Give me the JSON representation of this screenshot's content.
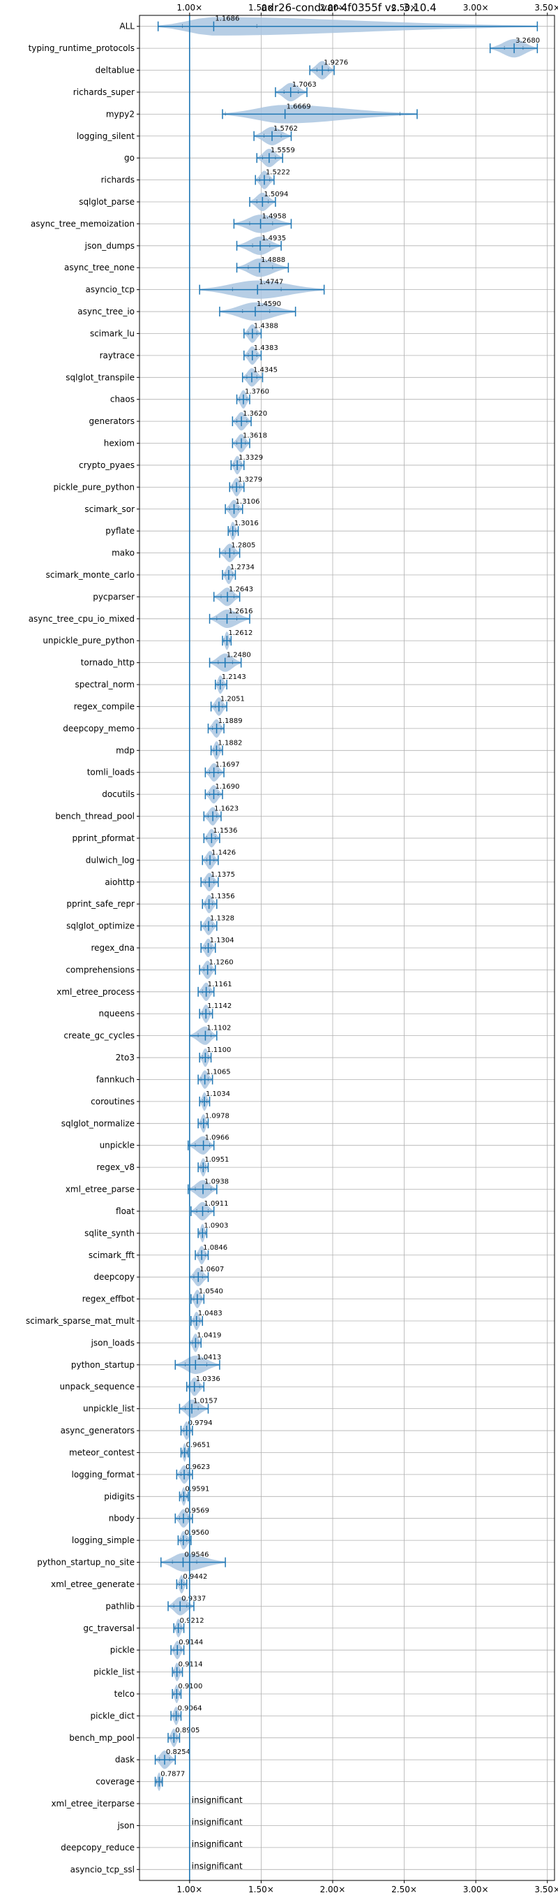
{
  "chart_data": {
    "type": "violin",
    "title": "adr26-condvar-4f0355f vs. 3.10.4",
    "x_ticks": [
      1.0,
      1.5,
      2.0,
      2.5,
      3.0,
      3.5
    ],
    "x_tick_labels": [
      "1.00×",
      "1.50×",
      "2.00×",
      "2.50×",
      "3.00×",
      "3.50×"
    ],
    "xlim": [
      0.65,
      3.55
    ],
    "reference_line": 1.0,
    "grid": true,
    "accent_color": "#1f77b4",
    "violin_color": "#aac6e1",
    "benchmarks": [
      {
        "name": "ALL",
        "label": "1.1686",
        "value": 1.1686,
        "min": 0.78,
        "max": 3.43,
        "p25": 0.95,
        "p75": 1.47
      },
      {
        "name": "typing_runtime_protocols",
        "label": "3.2680",
        "value": 3.268,
        "min": 3.1,
        "max": 3.43,
        "p25": 3.2,
        "p75": 3.33
      },
      {
        "name": "deltablue",
        "label": "1.9276",
        "value": 1.9276,
        "min": 1.84,
        "max": 2.01,
        "p25": 1.89,
        "p75": 1.97
      },
      {
        "name": "richards_super",
        "label": "1.7063",
        "value": 1.7063,
        "min": 1.6,
        "max": 1.82,
        "p25": 1.66,
        "p75": 1.76
      },
      {
        "name": "mypy2",
        "label": "1.6669",
        "value": 1.6669,
        "min": 1.23,
        "max": 2.59,
        "p25": 1.25,
        "p75": 2.47
      },
      {
        "name": "logging_silent",
        "label": "1.5762",
        "value": 1.5762,
        "min": 1.45,
        "max": 1.71,
        "p25": 1.52,
        "p75": 1.64
      },
      {
        "name": "go",
        "label": "1.5559",
        "value": 1.5559,
        "min": 1.47,
        "max": 1.65,
        "p25": 1.51,
        "p75": 1.6
      },
      {
        "name": "richards",
        "label": "1.5222",
        "value": 1.5222,
        "min": 1.46,
        "max": 1.59,
        "p25": 1.49,
        "p75": 1.56
      },
      {
        "name": "sqlglot_parse",
        "label": "1.5094",
        "value": 1.5094,
        "min": 1.42,
        "max": 1.6,
        "p25": 1.47,
        "p75": 1.55
      },
      {
        "name": "async_tree_memoization",
        "label": "1.4958",
        "value": 1.4958,
        "min": 1.31,
        "max": 1.71,
        "p25": 1.42,
        "p75": 1.58
      },
      {
        "name": "json_dumps",
        "label": "1.4935",
        "value": 1.4935,
        "min": 1.33,
        "max": 1.64,
        "p25": 1.44,
        "p75": 1.56
      },
      {
        "name": "async_tree_none",
        "label": "1.4888",
        "value": 1.4888,
        "min": 1.33,
        "max": 1.69,
        "p25": 1.41,
        "p75": 1.58
      },
      {
        "name": "asyncio_tcp",
        "label": "1.4747",
        "value": 1.4747,
        "min": 1.07,
        "max": 1.94,
        "p25": 1.3,
        "p75": 1.64
      },
      {
        "name": "async_tree_io",
        "label": "1.4590",
        "value": 1.459,
        "min": 1.21,
        "max": 1.74,
        "p25": 1.37,
        "p75": 1.56
      },
      {
        "name": "scimark_lu",
        "label": "1.4388",
        "value": 1.4388,
        "min": 1.38,
        "max": 1.5,
        "p25": 1.41,
        "p75": 1.47
      },
      {
        "name": "raytrace",
        "label": "1.4383",
        "value": 1.4383,
        "min": 1.38,
        "max": 1.5,
        "p25": 1.41,
        "p75": 1.47
      },
      {
        "name": "sqlglot_transpile",
        "label": "1.4345",
        "value": 1.4345,
        "min": 1.37,
        "max": 1.51,
        "p25": 1.4,
        "p75": 1.47
      },
      {
        "name": "chaos",
        "label": "1.3760",
        "value": 1.376,
        "min": 1.33,
        "max": 1.42,
        "p25": 1.35,
        "p75": 1.4
      },
      {
        "name": "generators",
        "label": "1.3620",
        "value": 1.362,
        "min": 1.3,
        "max": 1.43,
        "p25": 1.33,
        "p75": 1.4
      },
      {
        "name": "hexiom",
        "label": "1.3618",
        "value": 1.3618,
        "min": 1.3,
        "max": 1.42,
        "p25": 1.33,
        "p75": 1.39
      },
      {
        "name": "crypto_pyaes",
        "label": "1.3329",
        "value": 1.3329,
        "min": 1.29,
        "max": 1.38,
        "p25": 1.31,
        "p75": 1.36
      },
      {
        "name": "pickle_pure_python",
        "label": "1.3279",
        "value": 1.3279,
        "min": 1.28,
        "max": 1.38,
        "p25": 1.3,
        "p75": 1.35
      },
      {
        "name": "scimark_sor",
        "label": "1.3106",
        "value": 1.3106,
        "min": 1.25,
        "max": 1.37,
        "p25": 1.28,
        "p75": 1.34
      },
      {
        "name": "pyflate",
        "label": "1.3016",
        "value": 1.3016,
        "min": 1.27,
        "max": 1.34,
        "p25": 1.28,
        "p75": 1.32
      },
      {
        "name": "mako",
        "label": "1.2805",
        "value": 1.2805,
        "min": 1.21,
        "max": 1.35,
        "p25": 1.25,
        "p75": 1.31
      },
      {
        "name": "scimark_monte_carlo",
        "label": "1.2734",
        "value": 1.2734,
        "min": 1.23,
        "max": 1.32,
        "p25": 1.25,
        "p75": 1.3
      },
      {
        "name": "pycparser",
        "label": "1.2643",
        "value": 1.2643,
        "min": 1.17,
        "max": 1.35,
        "p25": 1.22,
        "p75": 1.31
      },
      {
        "name": "async_tree_cpu_io_mixed",
        "label": "1.2616",
        "value": 1.2616,
        "min": 1.14,
        "max": 1.42,
        "p25": 1.19,
        "p75": 1.33
      },
      {
        "name": "unpickle_pure_python",
        "label": "1.2612",
        "value": 1.2612,
        "min": 1.23,
        "max": 1.29,
        "p25": 1.24,
        "p75": 1.28
      },
      {
        "name": "tornado_http",
        "label": "1.2480",
        "value": 1.248,
        "min": 1.14,
        "max": 1.36,
        "p25": 1.2,
        "p75": 1.3
      },
      {
        "name": "spectral_norm",
        "label": "1.2143",
        "value": 1.2143,
        "min": 1.18,
        "max": 1.26,
        "p25": 1.2,
        "p75": 1.23
      },
      {
        "name": "regex_compile",
        "label": "1.2051",
        "value": 1.2051,
        "min": 1.15,
        "max": 1.26,
        "p25": 1.18,
        "p75": 1.23
      },
      {
        "name": "deepcopy_memo",
        "label": "1.1889",
        "value": 1.1889,
        "min": 1.13,
        "max": 1.24,
        "p25": 1.16,
        "p75": 1.22
      },
      {
        "name": "mdp",
        "label": "1.1882",
        "value": 1.1882,
        "min": 1.15,
        "max": 1.23,
        "p25": 1.17,
        "p75": 1.21
      },
      {
        "name": "tomli_loads",
        "label": "1.1697",
        "value": 1.1697,
        "min": 1.11,
        "max": 1.24,
        "p25": 1.14,
        "p75": 1.2
      },
      {
        "name": "docutils",
        "label": "1.1690",
        "value": 1.169,
        "min": 1.11,
        "max": 1.23,
        "p25": 1.14,
        "p75": 1.2
      },
      {
        "name": "bench_thread_pool",
        "label": "1.1623",
        "value": 1.1623,
        "min": 1.1,
        "max": 1.22,
        "p25": 1.13,
        "p75": 1.19
      },
      {
        "name": "pprint_pformat",
        "label": "1.1536",
        "value": 1.1536,
        "min": 1.1,
        "max": 1.21,
        "p25": 1.12,
        "p75": 1.18
      },
      {
        "name": "dulwich_log",
        "label": "1.1426",
        "value": 1.1426,
        "min": 1.09,
        "max": 1.2,
        "p25": 1.12,
        "p75": 1.17
      },
      {
        "name": "aiohttp",
        "label": "1.1375",
        "value": 1.1375,
        "min": 1.08,
        "max": 1.2,
        "p25": 1.11,
        "p75": 1.17
      },
      {
        "name": "pprint_safe_repr",
        "label": "1.1356",
        "value": 1.1356,
        "min": 1.09,
        "max": 1.19,
        "p25": 1.11,
        "p75": 1.16
      },
      {
        "name": "sqlglot_optimize",
        "label": "1.1328",
        "value": 1.1328,
        "min": 1.08,
        "max": 1.19,
        "p25": 1.11,
        "p75": 1.16
      },
      {
        "name": "regex_dna",
        "label": "1.1304",
        "value": 1.1304,
        "min": 1.08,
        "max": 1.18,
        "p25": 1.11,
        "p75": 1.15
      },
      {
        "name": "comprehensions",
        "label": "1.1260",
        "value": 1.126,
        "min": 1.07,
        "max": 1.18,
        "p25": 1.1,
        "p75": 1.15
      },
      {
        "name": "xml_etree_process",
        "label": "1.1161",
        "value": 1.1161,
        "min": 1.06,
        "max": 1.17,
        "p25": 1.09,
        "p75": 1.14
      },
      {
        "name": "nqueens",
        "label": "1.1142",
        "value": 1.1142,
        "min": 1.07,
        "max": 1.16,
        "p25": 1.09,
        "p75": 1.14
      },
      {
        "name": "create_gc_cycles",
        "label": "1.1102",
        "value": 1.1102,
        "min": 1.0,
        "max": 1.19,
        "p25": 1.06,
        "p75": 1.15
      },
      {
        "name": "2to3",
        "label": "1.1100",
        "value": 1.11,
        "min": 1.07,
        "max": 1.15,
        "p25": 1.09,
        "p75": 1.13
      },
      {
        "name": "fannkuch",
        "label": "1.1065",
        "value": 1.1065,
        "min": 1.06,
        "max": 1.16,
        "p25": 1.08,
        "p75": 1.13
      },
      {
        "name": "coroutines",
        "label": "1.1034",
        "value": 1.1034,
        "min": 1.07,
        "max": 1.14,
        "p25": 1.09,
        "p75": 1.12
      },
      {
        "name": "sqlglot_normalize",
        "label": "1.0978",
        "value": 1.0978,
        "min": 1.06,
        "max": 1.13,
        "p25": 1.08,
        "p75": 1.12
      },
      {
        "name": "unpickle",
        "label": "1.0966",
        "value": 1.0966,
        "min": 0.99,
        "max": 1.17,
        "p25": 1.04,
        "p75": 1.14
      },
      {
        "name": "regex_v8",
        "label": "1.0951",
        "value": 1.0951,
        "min": 1.06,
        "max": 1.13,
        "p25": 1.08,
        "p75": 1.11
      },
      {
        "name": "xml_etree_parse",
        "label": "1.0938",
        "value": 1.0938,
        "min": 0.99,
        "max": 1.19,
        "p25": 1.04,
        "p75": 1.15
      },
      {
        "name": "float",
        "label": "1.0911",
        "value": 1.0911,
        "min": 1.01,
        "max": 1.17,
        "p25": 1.05,
        "p75": 1.13
      },
      {
        "name": "sqlite_synth",
        "label": "1.0903",
        "value": 1.0903,
        "min": 1.06,
        "max": 1.12,
        "p25": 1.07,
        "p75": 1.11
      },
      {
        "name": "scimark_fft",
        "label": "1.0846",
        "value": 1.0846,
        "min": 1.04,
        "max": 1.13,
        "p25": 1.06,
        "p75": 1.11
      },
      {
        "name": "deepcopy",
        "label": "1.0607",
        "value": 1.0607,
        "min": 1.0,
        "max": 1.13,
        "p25": 1.03,
        "p75": 1.09
      },
      {
        "name": "regex_effbot",
        "label": "1.0540",
        "value": 1.054,
        "min": 1.01,
        "max": 1.1,
        "p25": 1.03,
        "p75": 1.08
      },
      {
        "name": "scimark_sparse_mat_mult",
        "label": "1.0483",
        "value": 1.0483,
        "min": 1.01,
        "max": 1.09,
        "p25": 1.03,
        "p75": 1.07
      },
      {
        "name": "json_loads",
        "label": "1.0419",
        "value": 1.0419,
        "min": 1.0,
        "max": 1.08,
        "p25": 1.02,
        "p75": 1.06
      },
      {
        "name": "python_startup",
        "label": "1.0413",
        "value": 1.0413,
        "min": 0.9,
        "max": 1.21,
        "p25": 0.97,
        "p75": 1.12
      },
      {
        "name": "unpack_sequence",
        "label": "1.0336",
        "value": 1.0336,
        "min": 0.98,
        "max": 1.1,
        "p25": 1.0,
        "p75": 1.07
      },
      {
        "name": "unpickle_list",
        "label": "1.0157",
        "value": 1.0157,
        "min": 0.93,
        "max": 1.13,
        "p25": 0.97,
        "p75": 1.06
      },
      {
        "name": "async_generators",
        "label": "0.9794",
        "value": 0.9794,
        "min": 0.94,
        "max": 1.02,
        "p25": 0.96,
        "p75": 1.0
      },
      {
        "name": "meteor_contest",
        "label": "0.9651",
        "value": 0.9651,
        "min": 0.94,
        "max": 0.99,
        "p25": 0.95,
        "p75": 0.98
      },
      {
        "name": "logging_format",
        "label": "0.9623",
        "value": 0.9623,
        "min": 0.91,
        "max": 1.02,
        "p25": 0.94,
        "p75": 0.99
      },
      {
        "name": "pidigits",
        "label": "0.9591",
        "value": 0.9591,
        "min": 0.93,
        "max": 0.99,
        "p25": 0.94,
        "p75": 0.98
      },
      {
        "name": "nbody",
        "label": "0.9569",
        "value": 0.9569,
        "min": 0.9,
        "max": 1.02,
        "p25": 0.93,
        "p75": 0.99
      },
      {
        "name": "logging_simple",
        "label": "0.9560",
        "value": 0.956,
        "min": 0.92,
        "max": 1.01,
        "p25": 0.94,
        "p75": 0.98
      },
      {
        "name": "python_startup_no_site",
        "label": "0.9546",
        "value": 0.9546,
        "min": 0.8,
        "max": 1.25,
        "p25": 0.88,
        "p75": 1.05
      },
      {
        "name": "xml_etree_generate",
        "label": "0.9442",
        "value": 0.9442,
        "min": 0.91,
        "max": 0.98,
        "p25": 0.93,
        "p75": 0.96
      },
      {
        "name": "pathlib",
        "label": "0.9337",
        "value": 0.9337,
        "min": 0.85,
        "max": 1.03,
        "p25": 0.89,
        "p75": 0.98
      },
      {
        "name": "gc_traversal",
        "label": "0.9212",
        "value": 0.9212,
        "min": 0.89,
        "max": 0.96,
        "p25": 0.9,
        "p75": 0.94
      },
      {
        "name": "pickle",
        "label": "0.9144",
        "value": 0.9144,
        "min": 0.87,
        "max": 0.96,
        "p25": 0.89,
        "p75": 0.94
      },
      {
        "name": "pickle_list",
        "label": "0.9114",
        "value": 0.9114,
        "min": 0.88,
        "max": 0.95,
        "p25": 0.89,
        "p75": 0.93
      },
      {
        "name": "telco",
        "label": "0.9100",
        "value": 0.91,
        "min": 0.88,
        "max": 0.94,
        "p25": 0.89,
        "p75": 0.93
      },
      {
        "name": "pickle_dict",
        "label": "0.9064",
        "value": 0.9064,
        "min": 0.87,
        "max": 0.94,
        "p25": 0.89,
        "p75": 0.92
      },
      {
        "name": "bench_mp_pool",
        "label": "0.8905",
        "value": 0.8905,
        "min": 0.85,
        "max": 0.93,
        "p25": 0.87,
        "p75": 0.91
      },
      {
        "name": "dask",
        "label": "0.8254",
        "value": 0.8254,
        "min": 0.76,
        "max": 0.9,
        "p25": 0.79,
        "p75": 0.86
      },
      {
        "name": "coverage",
        "label": "0.7877",
        "value": 0.7877,
        "min": 0.76,
        "max": 0.81,
        "p25": 0.77,
        "p75": 0.8
      },
      {
        "name": "xml_etree_iterparse",
        "label": "insignificant",
        "value": null
      },
      {
        "name": "json",
        "label": "insignificant",
        "value": null
      },
      {
        "name": "deepcopy_reduce",
        "label": "insignificant",
        "value": null
      },
      {
        "name": "asyncio_tcp_ssl",
        "label": "insignificant",
        "value": null
      }
    ]
  }
}
